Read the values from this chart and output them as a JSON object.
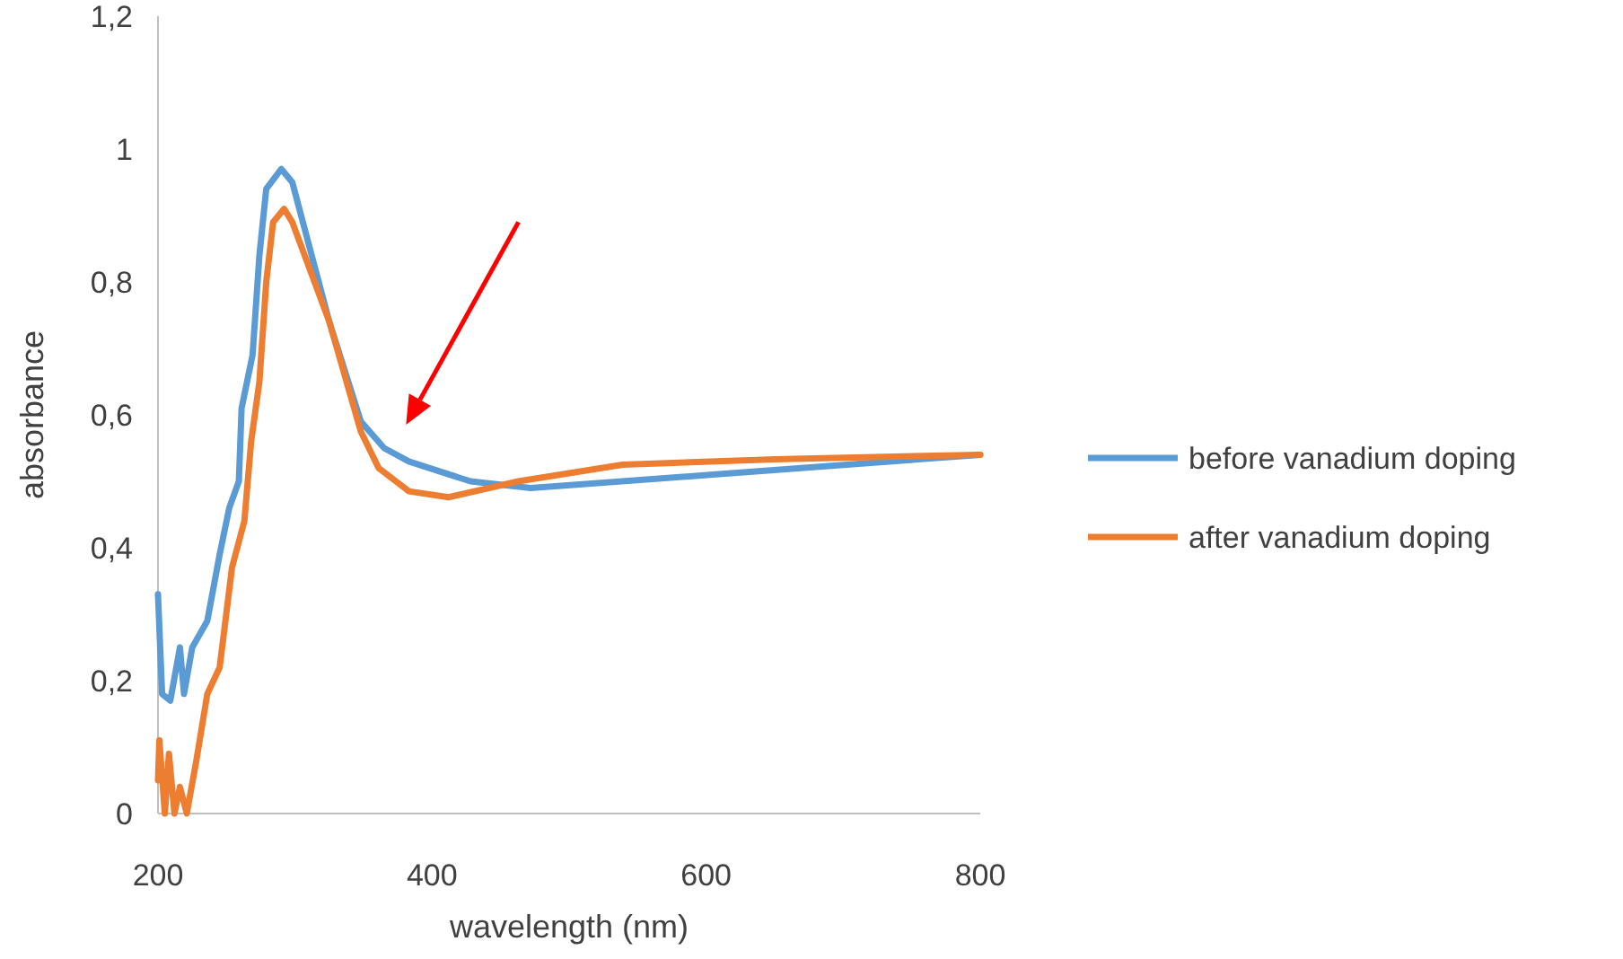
{
  "chart_data": {
    "type": "line",
    "xlabel": "wavelength (nm)",
    "ylabel": "absorbance",
    "xlim": [
      200,
      800
    ],
    "xticks": [
      200,
      400,
      600,
      800
    ],
    "ylim": [
      0,
      1.2
    ],
    "yticks": [
      {
        "value": 0,
        "label": "0"
      },
      {
        "value": 0.2,
        "label": "0,2"
      },
      {
        "value": 0.4,
        "label": "0,4"
      },
      {
        "value": 0.6,
        "label": "0,6"
      },
      {
        "value": 0.8,
        "label": "0,8"
      },
      {
        "value": 1,
        "label": "1"
      },
      {
        "value": 1.2,
        "label": "1,2"
      }
    ],
    "grid": false,
    "legend": "right",
    "marker": "none",
    "line_style": "solid",
    "series": [
      {
        "name": "before vanadium doping",
        "color": "#5b9bd5",
        "x": [
          200,
          203,
          209,
          216,
          219,
          225,
          236,
          245,
          252,
          259,
          261,
          265,
          269,
          274,
          279,
          290,
          298,
          325,
          348,
          365,
          383,
          428,
          472,
          605,
          800
        ],
        "values": [
          0.33,
          0.18,
          0.17,
          0.25,
          0.18,
          0.25,
          0.29,
          0.39,
          0.46,
          0.5,
          0.61,
          0.65,
          0.69,
          0.84,
          0.94,
          0.97,
          0.95,
          0.74,
          0.59,
          0.55,
          0.53,
          0.5,
          0.49,
          0.51,
          0.54
        ]
      },
      {
        "name": "after vanadium doping",
        "color": "#ed7d31",
        "x": [
          200,
          201,
          205,
          208,
          212,
          216,
          221,
          228,
          236,
          245,
          254,
          263,
          268,
          274,
          279,
          284,
          292,
          298,
          325,
          348,
          361,
          383,
          412,
          463,
          539,
          650,
          800
        ],
        "values": [
          0.05,
          0.11,
          0.0,
          0.09,
          0.0,
          0.04,
          0.0,
          0.08,
          0.18,
          0.22,
          0.37,
          0.44,
          0.56,
          0.65,
          0.8,
          0.89,
          0.91,
          0.89,
          0.74,
          0.575,
          0.52,
          0.485,
          0.476,
          0.5,
          0.525,
          0.533,
          0.54
        ]
      }
    ]
  }
}
